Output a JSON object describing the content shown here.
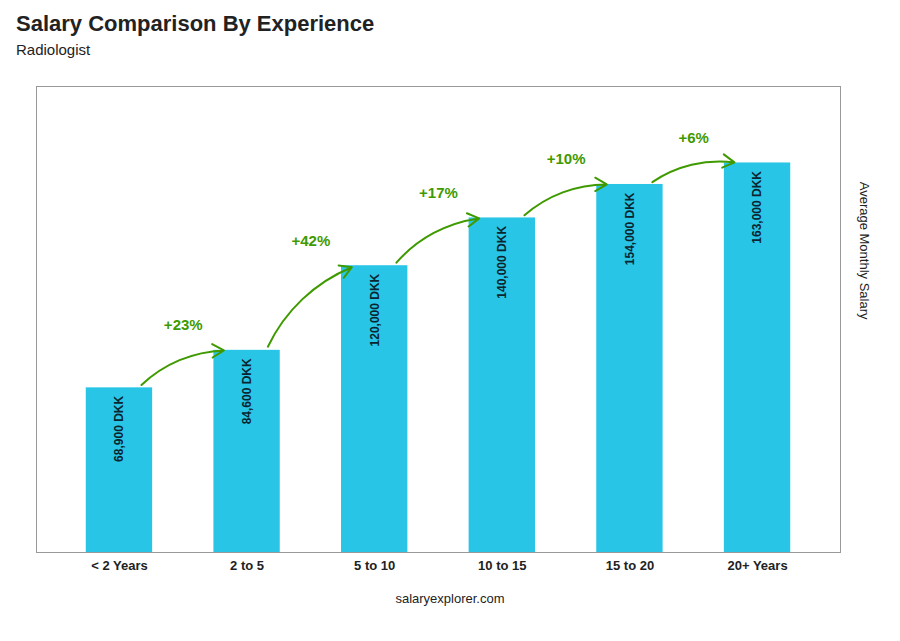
{
  "chart_data": {
    "type": "bar",
    "title": "Salary Comparison By Experience",
    "subtitle": "Radiologist",
    "ylabel": "Average Monthly Salary",
    "caption": "salaryexplorer.com",
    "categories": [
      "< 2 Years",
      "2 to 5",
      "5 to 10",
      "10 to 15",
      "15 to 20",
      "20+ Years"
    ],
    "values": [
      68900,
      84600,
      120000,
      140000,
      154000,
      163000
    ],
    "value_labels": [
      "68,900 DKK",
      "84,600 DKK",
      "120,000 DKK",
      "140,000 DKK",
      "154,000 DKK",
      "163,000 DKK"
    ],
    "data_labels": true,
    "annotations": [
      "+23%",
      "+42%",
      "+17%",
      "+10%",
      "+6%"
    ],
    "color": "#29c5e6",
    "ylim": [
      0,
      195000
    ],
    "grid": false,
    "tick_labels": "x"
  }
}
